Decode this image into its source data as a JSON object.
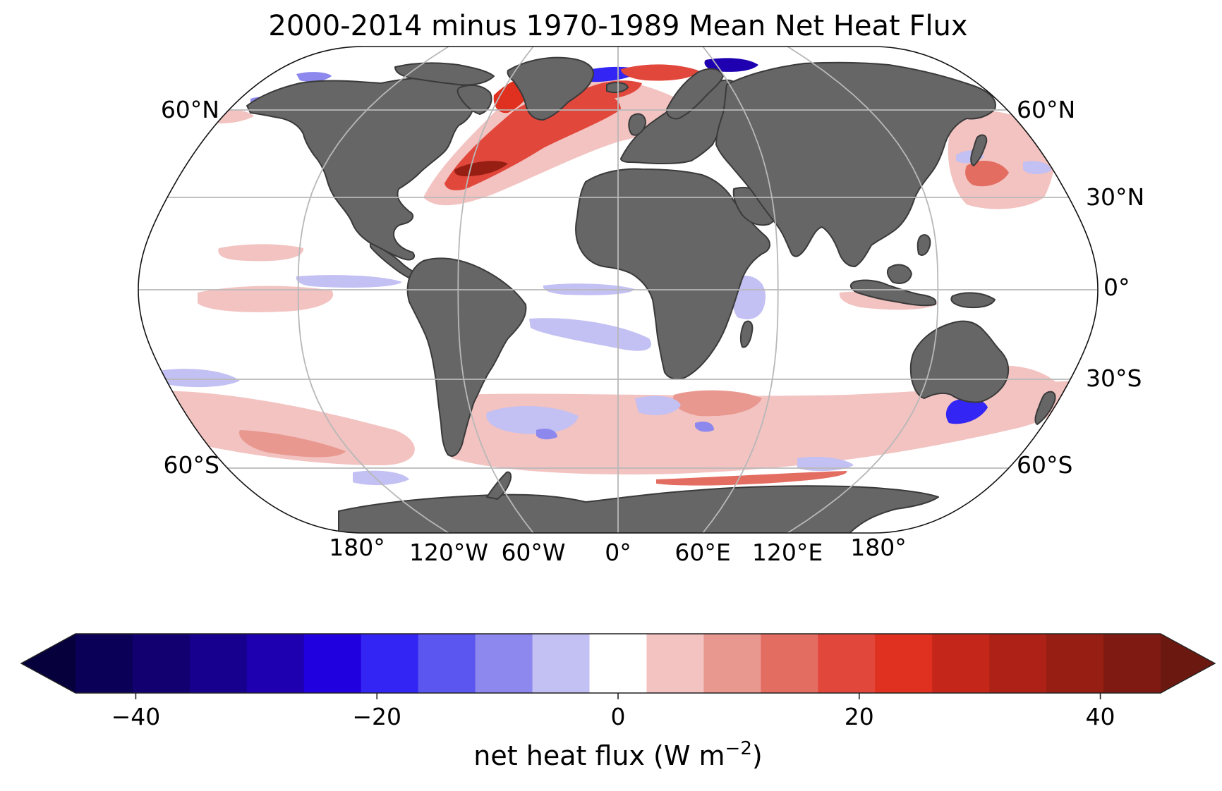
{
  "title": "2000-2014 minus 1970-1989 Mean Net Heat Flux",
  "map": {
    "projection": "Robinson",
    "land_color": "#666666",
    "coastline_color": "#3a3a3a",
    "graticule_color": "#b8b8b8",
    "lat_labels": {
      "left": [
        "60°N",
        "60°S"
      ],
      "right": [
        "60°N",
        "30°N",
        "0°",
        "30°S",
        "60°S"
      ]
    },
    "lon_labels": [
      "180°",
      "120°W",
      "60°W",
      "0°",
      "60°E",
      "120°E",
      "180°"
    ],
    "anomaly_regions": [
      {
        "name": "north-atlantic-gulf-stream",
        "value": 30
      },
      {
        "name": "labrador-irminger",
        "value": 25
      },
      {
        "name": "nordic-barents-seas",
        "value": -25
      },
      {
        "name": "kuroshio-extension",
        "value": 15
      },
      {
        "name": "okhotsk-sea",
        "value": -15
      },
      {
        "name": "east-australian-current",
        "value": -20
      },
      {
        "name": "eastern-equatorial-pacific",
        "value": 5
      },
      {
        "name": "equatorial-atlantic",
        "value": -5
      },
      {
        "name": "western-indian-ocean",
        "value": -5
      },
      {
        "name": "southern-ocean-band",
        "value": 5
      },
      {
        "name": "south-pacific-45s",
        "value": 10
      },
      {
        "name": "agulhas-retroflection",
        "value": 10
      }
    ]
  },
  "colorbar": {
    "label_main": "net heat flux (W m",
    "label_sup": "−2",
    "label_end": ")",
    "min": -50,
    "max": 50,
    "step": 5,
    "ticks": [
      -40,
      -20,
      0,
      20,
      40
    ],
    "tick_labels": [
      "−40",
      "−20",
      "0",
      "20",
      "40"
    ],
    "colors": [
      "#06003d",
      "#0b0057",
      "#120070",
      "#18008e",
      "#1e00b0",
      "#2100df",
      "#3325f3",
      "#5c56f0",
      "#8d88ee",
      "#c3c0f3",
      "#ffffff",
      "#f2c3c1",
      "#e99890",
      "#e46d62",
      "#e2473b",
      "#e0301f",
      "#c4261a",
      "#ae2116",
      "#961e13",
      "#7e1a11",
      "#6b1910"
    ],
    "extend": "both"
  }
}
